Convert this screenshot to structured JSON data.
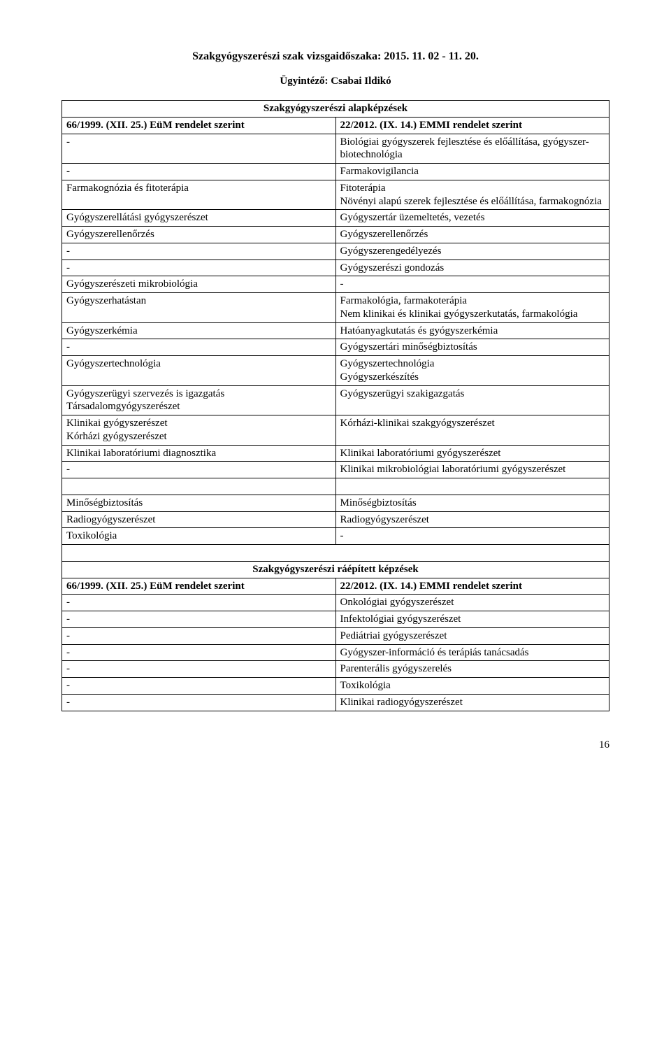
{
  "title": "Szakgyógyszerészi szak vizsgaidőszaka: 2015. 11. 02 - 11. 20.",
  "admin": "Ügyintéző: Csabai Ildikó",
  "section1": "Szakgyógyszerészi alapképzések",
  "header": {
    "left": "66/1999. (XII. 25.) EüM rendelet szerint",
    "right": "22/2012. (IX. 14.) EMMI rendelet szerint"
  },
  "rows1": [
    {
      "l": "-",
      "r": "Biológiai gyógyszerek fejlesztése és előállítása, gyógyszer-biotechnológia"
    },
    {
      "l": "-",
      "r": "Farmakovigilancia"
    },
    {
      "l": "Farmakognózia és fitoterápia",
      "r": "Fitoterápia\nNövényi alapú szerek fejlesztése és előállítása, farmakognózia"
    },
    {
      "l": "Gyógyszerellátási gyógyszerészet",
      "r": "Gyógyszertár üzemeltetés, vezetés"
    },
    {
      "l": "Gyógyszerellenőrzés",
      "r": "Gyógyszerellenőrzés"
    },
    {
      "l": "-",
      "r": "Gyógyszerengedélyezés"
    },
    {
      "l": "-",
      "r": "Gyógyszerészi gondozás"
    },
    {
      "l": "Gyógyszerészeti mikrobiológia",
      "r": "-"
    },
    {
      "l": "Gyógyszerhatástan",
      "r": "Farmakológia, farmakoterápia\nNem klinikai és klinikai gyógyszerkutatás, farmakológia"
    },
    {
      "l": "Gyógyszerkémia",
      "r": "Hatóanyagkutatás és gyógyszerkémia"
    },
    {
      "l": "-",
      "r": "Gyógyszertári minőségbiztosítás"
    },
    {
      "l": "Gyógyszertechnológia",
      "r": "Gyógyszertechnológia\nGyógyszerkészítés"
    },
    {
      "l": "Gyógyszerügyi szervezés is igazgatás\nTársadalomgyógyszerészet",
      "r": "Gyógyszerügyi szakigazgatás"
    },
    {
      "l": "Klinikai gyógyszerészet\nKórházi gyógyszerészet",
      "r": "Kórházi-klinikai szakgyógyszerészet"
    },
    {
      "l": "Klinikai laboratóriumi diagnosztika",
      "r": "Klinikai laboratóriumi gyógyszerészet"
    },
    {
      "l": "-",
      "r": "Klinikai mikrobiológiai laboratóriumi gyógyszerészet"
    }
  ],
  "rows2": [
    {
      "l": "Minőségbiztosítás",
      "r": "Minőségbiztosítás"
    },
    {
      "l": "Radiogyógyszerészet",
      "r": "Radiogyógyszerészet"
    },
    {
      "l": "Toxikológia",
      "r": "-"
    }
  ],
  "section2": "Szakgyógyszerészi ráépített képzések",
  "header2": {
    "left": "66/1999. (XII. 25.) EüM rendelet szerint",
    "right": "22/2012. (IX. 14.) EMMI rendelet szerint"
  },
  "rows3": [
    {
      "l": "-",
      "r": "Onkológiai gyógyszerészet"
    },
    {
      "l": "-",
      "r": "Infektológiai gyógyszerészet"
    },
    {
      "l": "-",
      "r": "Pediátriai gyógyszerészet"
    },
    {
      "l": "-",
      "r": "Gyógyszer-információ és terápiás tanácsadás"
    },
    {
      "l": "-",
      "r": "Parenterális gyógyszerelés"
    },
    {
      "l": "-",
      "r": "Toxikológia"
    },
    {
      "l": "-",
      "r": "Klinikai radiogyógyszerészet"
    }
  ],
  "pageNumber": "16"
}
